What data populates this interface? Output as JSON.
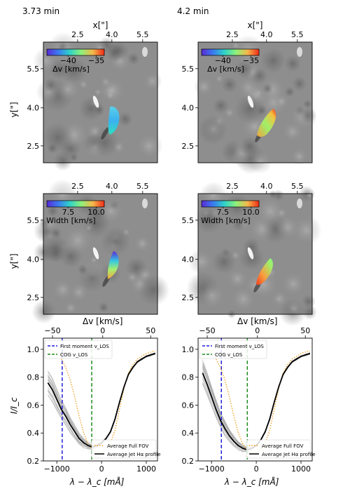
{
  "chart_data": [
    {
      "type": "heatmap",
      "panel": "top-left",
      "title": "3.73 min",
      "xlabel": "x[\"]",
      "ylabel": "y[\"]",
      "x_ticks": [
        "2.5",
        "4.0",
        "5.5"
      ],
      "y_ticks": [
        "5.5",
        "4.0",
        "2.5"
      ],
      "colorbar": {
        "label": "Δv [km/s]",
        "ticks": [
          "−40",
          "−35"
        ],
        "colormap": "rainbow"
      },
      "background": "grayscale solar image"
    },
    {
      "type": "heatmap",
      "panel": "top-right",
      "title": "4.2 min",
      "xlabel": "x[\"]",
      "ylabel": "",
      "x_ticks": [
        "2.5",
        "4.0",
        "5.5"
      ],
      "y_ticks": [
        "5.5",
        "4.0",
        "2.5"
      ],
      "colorbar": {
        "label": "Δv [km/s]",
        "ticks": [
          "−40",
          "−35"
        ],
        "colormap": "rainbow"
      },
      "background": "grayscale solar image"
    },
    {
      "type": "heatmap",
      "panel": "middle-left",
      "title": "",
      "xlabel": "",
      "ylabel": "y[\"]",
      "x_ticks": [
        "2.5",
        "4.0",
        "5.5"
      ],
      "y_ticks": [
        "5.5",
        "4.0",
        "2.5"
      ],
      "colorbar": {
        "label": "Width [km/s]",
        "ticks": [
          "7.5",
          "10.0"
        ],
        "colormap": "rainbow"
      },
      "background": "grayscale solar image"
    },
    {
      "type": "heatmap",
      "panel": "middle-right",
      "title": "",
      "xlabel": "",
      "ylabel": "",
      "x_ticks": [
        "2.5",
        "4.0",
        "5.5"
      ],
      "y_ticks": [
        "5.5",
        "4.0",
        "2.5"
      ],
      "colorbar": {
        "label": "Width [km/s]",
        "ticks": [
          "7.5",
          "10.0"
        ],
        "colormap": "rainbow"
      },
      "background": "grayscale solar image"
    },
    {
      "type": "line",
      "panel": "bottom-left",
      "xlabel": "λ − λ_c [mÅ]",
      "ylabel": "I/I_c",
      "top_xlabel": "Δv [km/s]",
      "xlim": [
        -1300,
        1250
      ],
      "ylim": [
        0.2,
        1.08
      ],
      "x_ticks": [
        -1000,
        0,
        1000
      ],
      "y_ticks": [
        0.2,
        0.4,
        0.6,
        0.8,
        1.0
      ],
      "top_ticks": [
        "−50",
        "0",
        "50"
      ],
      "vlines": [
        {
          "name": "First moment v_LOS",
          "x": -880,
          "color": "#1f1fdd",
          "style": "dashed"
        },
        {
          "name": "COG v_LOS",
          "x": -220,
          "color": "#1e8c1e",
          "style": "dashed"
        }
      ],
      "legend_top": [
        "First moment v_LOS",
        "COG v_LOS"
      ],
      "legend_bottom": [
        "Average Full FOV",
        "Average Jet Hα profile"
      ],
      "series": [
        {
          "name": "Average Full FOV",
          "color": "#f0a020",
          "style": "dotted",
          "x": [
            -1200,
            -1100,
            -1000,
            -900,
            -800,
            -700,
            -600,
            -500,
            -400,
            -300,
            -200,
            -100,
            0,
            100,
            200,
            300,
            400,
            500,
            600,
            700,
            800,
            900,
            1000,
            1100,
            1200
          ],
          "y": [
            1.0,
            0.99,
            0.97,
            0.93,
            0.87,
            0.78,
            0.66,
            0.52,
            0.4,
            0.32,
            0.28,
            0.26,
            0.26,
            0.28,
            0.33,
            0.42,
            0.57,
            0.72,
            0.83,
            0.89,
            0.93,
            0.95,
            0.97,
            0.98,
            0.99
          ]
        },
        {
          "name": "Average Jet Hα profile",
          "color": "#000000",
          "style": "solid",
          "x": [
            -1200,
            -1100,
            -1000,
            -900,
            -800,
            -700,
            -600,
            -500,
            -400,
            -300,
            -200,
            -100,
            0,
            100,
            200,
            300,
            400,
            500,
            600,
            700,
            800,
            900,
            1000,
            1100,
            1200
          ],
          "y": [
            0.76,
            0.71,
            0.64,
            0.57,
            0.52,
            0.46,
            0.41,
            0.36,
            0.33,
            0.31,
            0.3,
            0.31,
            0.33,
            0.36,
            0.41,
            0.5,
            0.62,
            0.73,
            0.82,
            0.87,
            0.91,
            0.93,
            0.95,
            0.96,
            0.97
          ]
        }
      ]
    },
    {
      "type": "line",
      "panel": "bottom-right",
      "xlabel": "λ − λ_c [mÅ]",
      "ylabel": "",
      "top_xlabel": "Δv [km/s]",
      "xlim": [
        -1300,
        1250
      ],
      "ylim": [
        0.2,
        1.08
      ],
      "x_ticks": [
        -1000,
        0,
        1000
      ],
      "y_ticks": [
        0.2,
        0.4,
        0.6,
        0.8,
        1.0
      ],
      "top_ticks": [
        "−50",
        "0",
        "50"
      ],
      "vlines": [
        {
          "name": "First moment v_LOS",
          "x": -780,
          "color": "#1f1fdd",
          "style": "dashed"
        },
        {
          "name": "COG v_LOS",
          "x": -200,
          "color": "#1e8c1e",
          "style": "dashed"
        }
      ],
      "legend_top": [
        "First moment v_LOS",
        "COG v_LOS"
      ],
      "legend_bottom": [
        "Average Full FOV",
        "Average Jet Hα profile"
      ],
      "series": [
        {
          "name": "Average Full FOV",
          "color": "#f0a020",
          "style": "dotted",
          "x": [
            -1200,
            -1100,
            -1000,
            -900,
            -800,
            -700,
            -600,
            -500,
            -400,
            -300,
            -200,
            -100,
            0,
            100,
            200,
            300,
            400,
            500,
            600,
            700,
            800,
            900,
            1000,
            1100,
            1200
          ],
          "y": [
            1.0,
            0.99,
            0.97,
            0.93,
            0.87,
            0.78,
            0.66,
            0.52,
            0.4,
            0.32,
            0.28,
            0.26,
            0.26,
            0.28,
            0.33,
            0.42,
            0.57,
            0.72,
            0.83,
            0.89,
            0.93,
            0.95,
            0.97,
            0.98,
            0.99
          ]
        },
        {
          "name": "Average Jet Hα profile",
          "color": "#000000",
          "style": "solid",
          "x": [
            -1200,
            -1100,
            -1000,
            -900,
            -800,
            -700,
            -600,
            -500,
            -400,
            -300,
            -200,
            -100,
            0,
            100,
            200,
            300,
            400,
            500,
            600,
            700,
            800,
            900,
            1000,
            1100,
            1200
          ],
          "y": [
            0.83,
            0.75,
            0.66,
            0.57,
            0.49,
            0.43,
            0.38,
            0.34,
            0.31,
            0.29,
            0.28,
            0.29,
            0.31,
            0.35,
            0.41,
            0.5,
            0.62,
            0.73,
            0.82,
            0.87,
            0.91,
            0.93,
            0.95,
            0.96,
            0.97
          ]
        }
      ]
    }
  ]
}
